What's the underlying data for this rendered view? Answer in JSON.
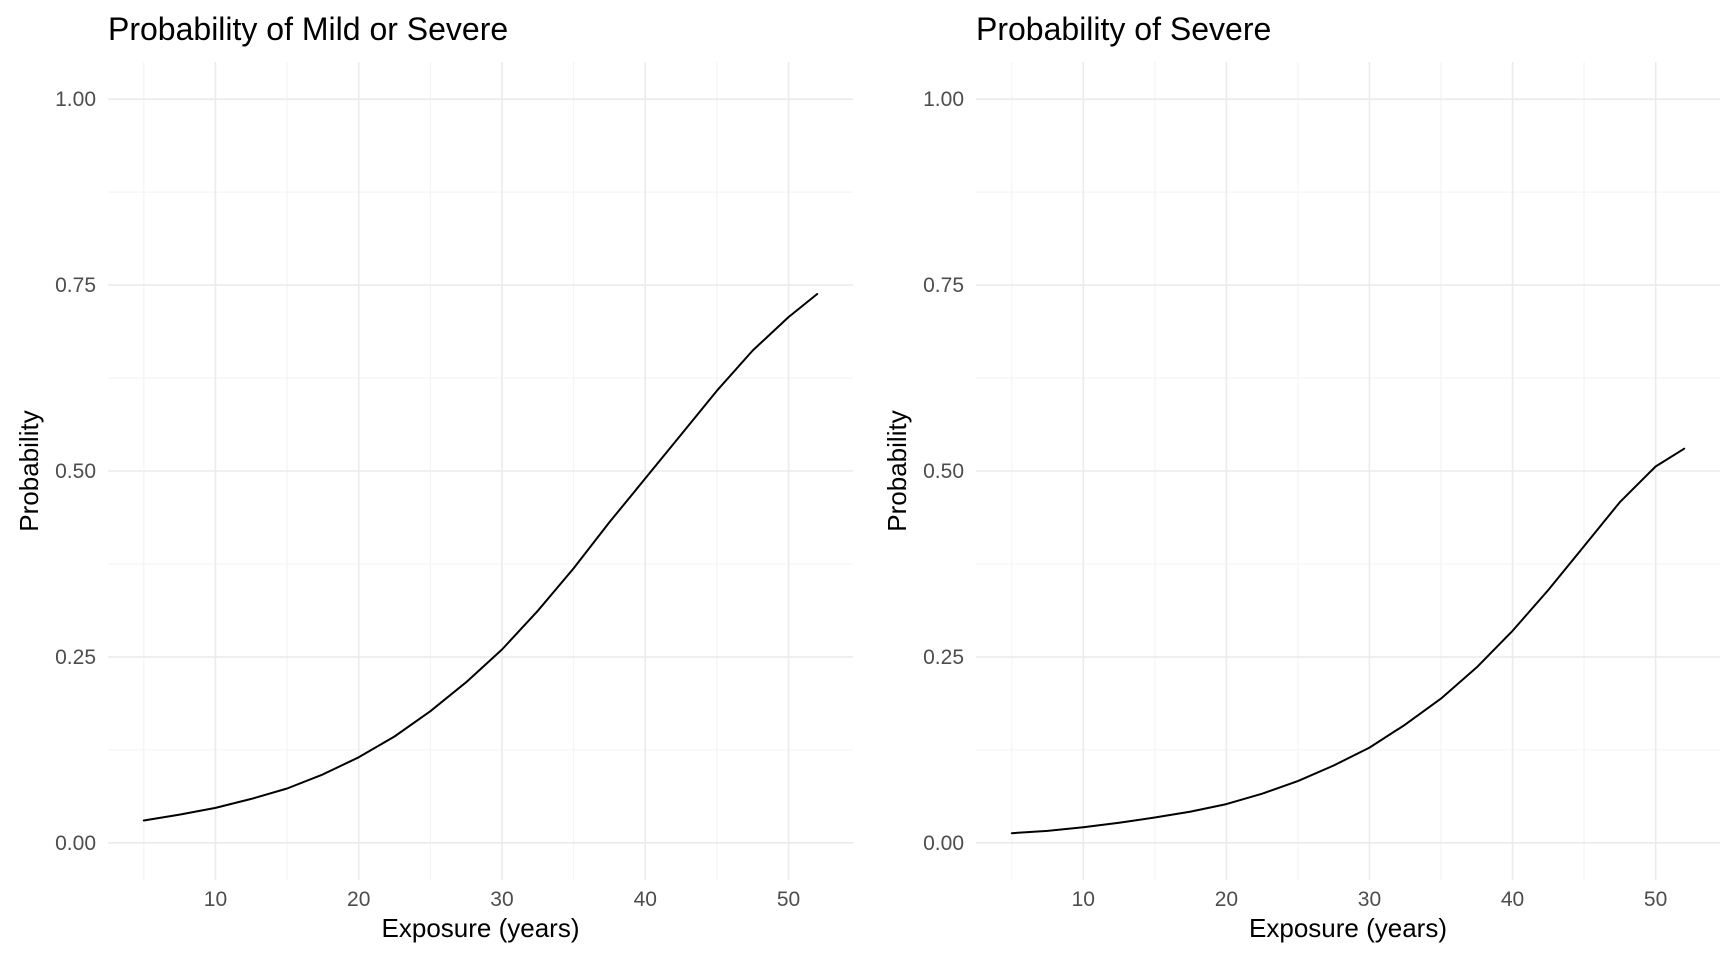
{
  "chart_data": [
    {
      "type": "line",
      "title": "Probability of Mild or Severe",
      "xlabel": "Exposure (years)",
      "ylabel": "Probability",
      "xlim": [
        2.5,
        54.5
      ],
      "ylim": [
        -0.05,
        1.05
      ],
      "x_ticks": [
        10,
        20,
        30,
        40,
        50
      ],
      "x_tick_labels": [
        "10",
        "20",
        "30",
        "40",
        "50"
      ],
      "y_ticks": [
        0,
        0.25,
        0.5,
        0.75,
        1.0
      ],
      "y_tick_labels": [
        "0.00",
        "0.25",
        "0.50",
        "0.75",
        "1.00"
      ],
      "grid": true,
      "legend": "none",
      "x": [
        5,
        7.5,
        10,
        12.5,
        15,
        17.5,
        20,
        22.5,
        25,
        27.5,
        30,
        32.5,
        35,
        37.5,
        40,
        42.5,
        45,
        47.5,
        50,
        52
      ],
      "y": [
        0.03,
        0.038,
        0.047,
        0.059,
        0.073,
        0.092,
        0.115,
        0.143,
        0.177,
        0.216,
        0.26,
        0.312,
        0.369,
        0.431,
        0.49,
        0.549,
        0.608,
        0.662,
        0.707,
        0.738
      ],
      "line_color": "#000000"
    },
    {
      "type": "line",
      "title": "Probability of Severe",
      "xlabel": "Exposure (years)",
      "ylabel": "Probability",
      "xlim": [
        2.5,
        54.5
      ],
      "ylim": [
        -0.05,
        1.05
      ],
      "x_ticks": [
        10,
        20,
        30,
        40,
        50
      ],
      "x_tick_labels": [
        "10",
        "20",
        "30",
        "40",
        "50"
      ],
      "y_ticks": [
        0,
        0.25,
        0.5,
        0.75,
        1.0
      ],
      "y_tick_labels": [
        "0.00",
        "0.25",
        "0.50",
        "0.75",
        "1.00"
      ],
      "grid": true,
      "legend": "none",
      "x": [
        5,
        7.5,
        10,
        12.5,
        15,
        17.5,
        20,
        22.5,
        25,
        27.5,
        30,
        32.5,
        35,
        37.5,
        40,
        42.5,
        45,
        47.5,
        50,
        52
      ],
      "y": [
        0.013,
        0.016,
        0.021,
        0.027,
        0.034,
        0.042,
        0.052,
        0.066,
        0.083,
        0.104,
        0.128,
        0.159,
        0.194,
        0.236,
        0.285,
        0.34,
        0.399,
        0.458,
        0.506,
        0.53
      ],
      "line_color": "#000000"
    }
  ]
}
